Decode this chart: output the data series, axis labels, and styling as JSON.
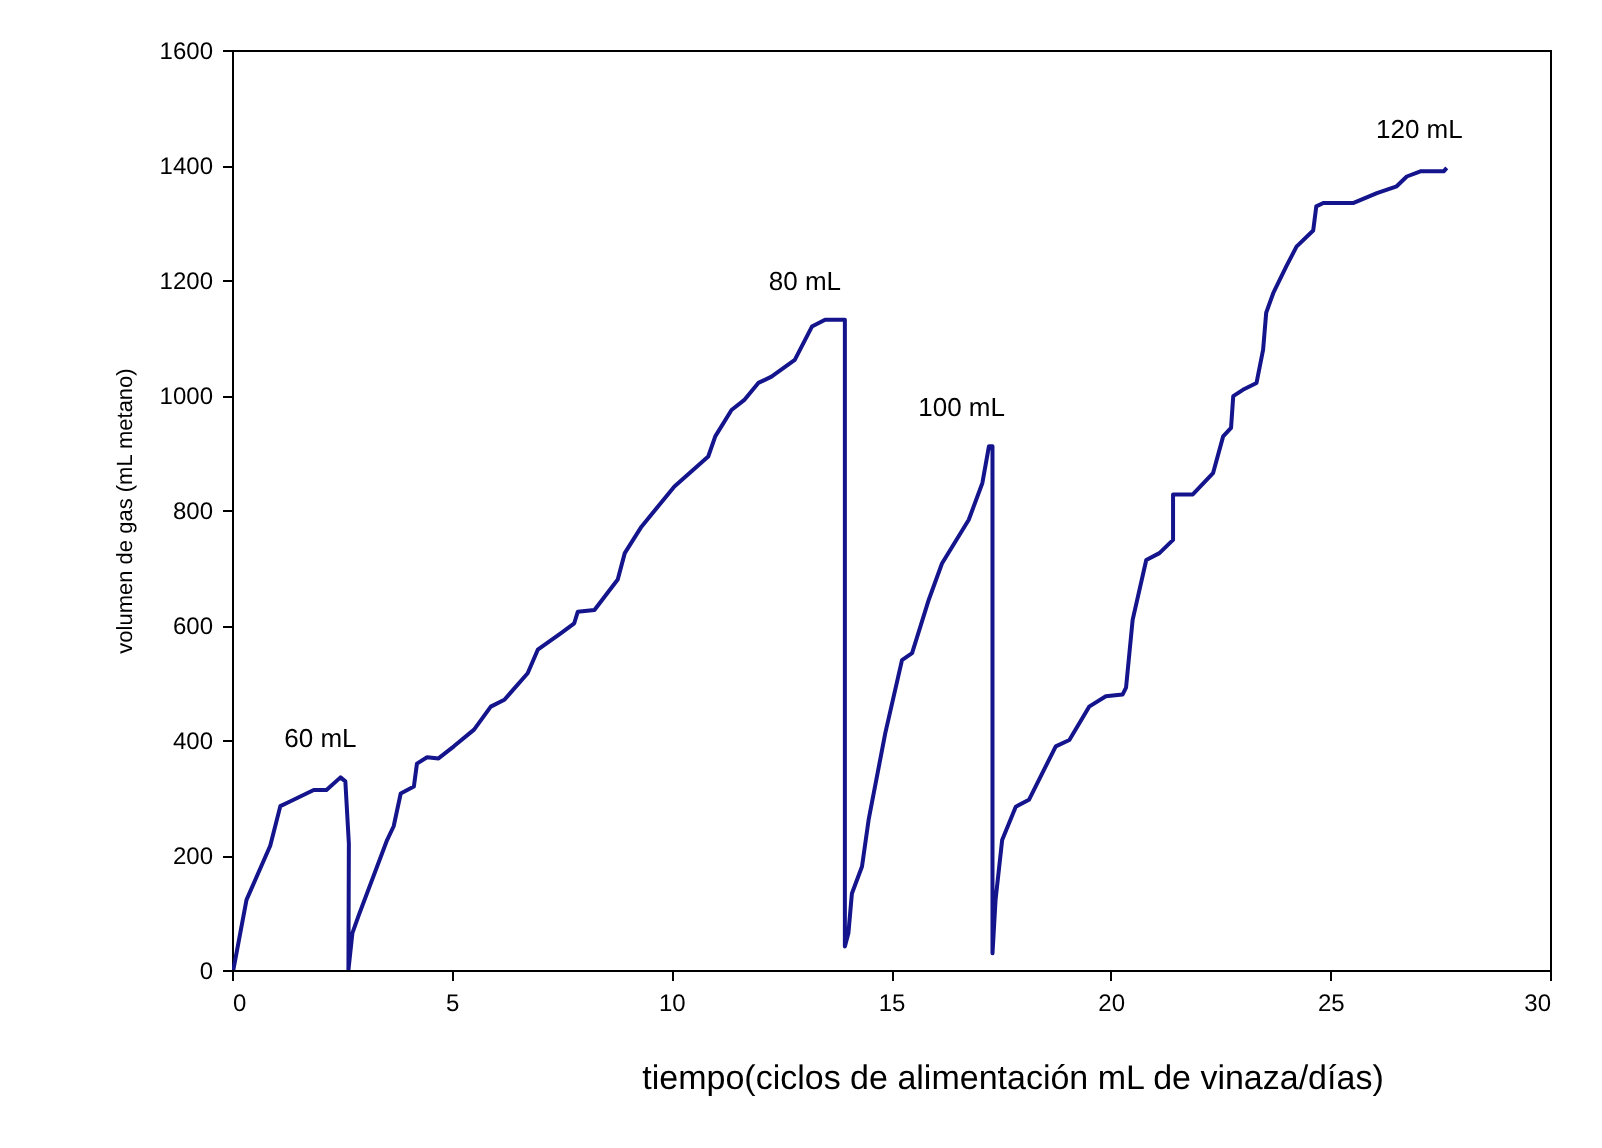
{
  "chart_data": {
    "type": "line",
    "xlabel": "tiempo(ciclos de alimentación mL de vinaza/días)",
    "ylabel": "volumen de gas (mL metano)",
    "xlim": [
      0,
      30
    ],
    "xticks": [
      0,
      5,
      10,
      15,
      20,
      25,
      30
    ],
    "ylim": [
      0,
      1600
    ],
    "yticks": [
      0,
      200,
      400,
      600,
      800,
      1000,
      1200,
      1400,
      1600
    ],
    "grid": false,
    "marker": "none",
    "line_style": "solid",
    "annotations": [
      {
        "text": "60 mL",
        "x": 2.47,
        "y": 335
      },
      {
        "text": "80 mL",
        "x": 13.5,
        "y": 1131
      },
      {
        "text": "100 mL",
        "x": 17.23,
        "y": 911
      },
      {
        "text": "120 mL",
        "x": 27.65,
        "y": 1395
      }
    ],
    "series": [
      {
        "color": "#14148c",
        "x": [
          0.03,
          0.33,
          0.87,
          1.1,
          1.32,
          1.86,
          2.15,
          2.47,
          2.58,
          2.66,
          2.65,
          2.74,
          2.88,
          3.53,
          3.68,
          3.84,
          4.14,
          4.21,
          4.44,
          4.7,
          5.05,
          5.51,
          5.89,
          6.2,
          6.73,
          6.96,
          7.49,
          7.79,
          7.87,
          8.25,
          8.78,
          8.94,
          9.32,
          10.07,
          10.84,
          11.0,
          11.37,
          11.67,
          11.98,
          12.28,
          12.81,
          13.2,
          13.5,
          13.95,
          13.95,
          14.03,
          14.11,
          14.34,
          14.49,
          14.87,
          15.25,
          15.48,
          15.86,
          16.16,
          16.77,
          17.08,
          17.23,
          17.31,
          17.31,
          17.38,
          17.53,
          17.84,
          18.14,
          18.75,
          19.06,
          19.51,
          19.89,
          20.27,
          20.35,
          20.5,
          20.81,
          21.11,
          21.42,
          21.42,
          21.87,
          22.33,
          22.56,
          22.74,
          22.79,
          23.01,
          23.32,
          23.47,
          23.54,
          23.7,
          24.0,
          24.23,
          24.61,
          24.68,
          24.84,
          25.53,
          26.06,
          26.51,
          26.74,
          27.05,
          27.58,
          27.65
        ],
        "values": [
          0,
          122,
          216,
          285,
          293,
          313,
          313,
          335,
          328,
          220,
          0,
          64,
          94,
          226,
          250,
          307,
          319,
          359,
          370,
          368,
          389,
          418,
          458,
          470,
          516,
          557,
          586,
          603,
          623,
          626,
          679,
          725,
          771,
          841,
          893,
          928,
          974,
          992,
          1021,
          1032,
          1061,
          1119,
          1131,
          1131,
          41,
          64,
          133,
          180,
          261,
          412,
          539,
          551,
          644,
          707,
          783,
          847,
          911,
          911,
          29,
          122,
          226,
          284,
          296,
          389,
          400,
          458,
          476,
          479,
          491,
          609,
          713,
          725,
          748,
          827,
          827,
          864,
          928,
          943,
          998,
          1009,
          1021,
          1079,
          1143,
          1177,
          1224,
          1258,
          1286,
          1328,
          1334,
          1334,
          1351,
          1363,
          1380,
          1389,
          1389,
          1395
        ]
      }
    ]
  }
}
